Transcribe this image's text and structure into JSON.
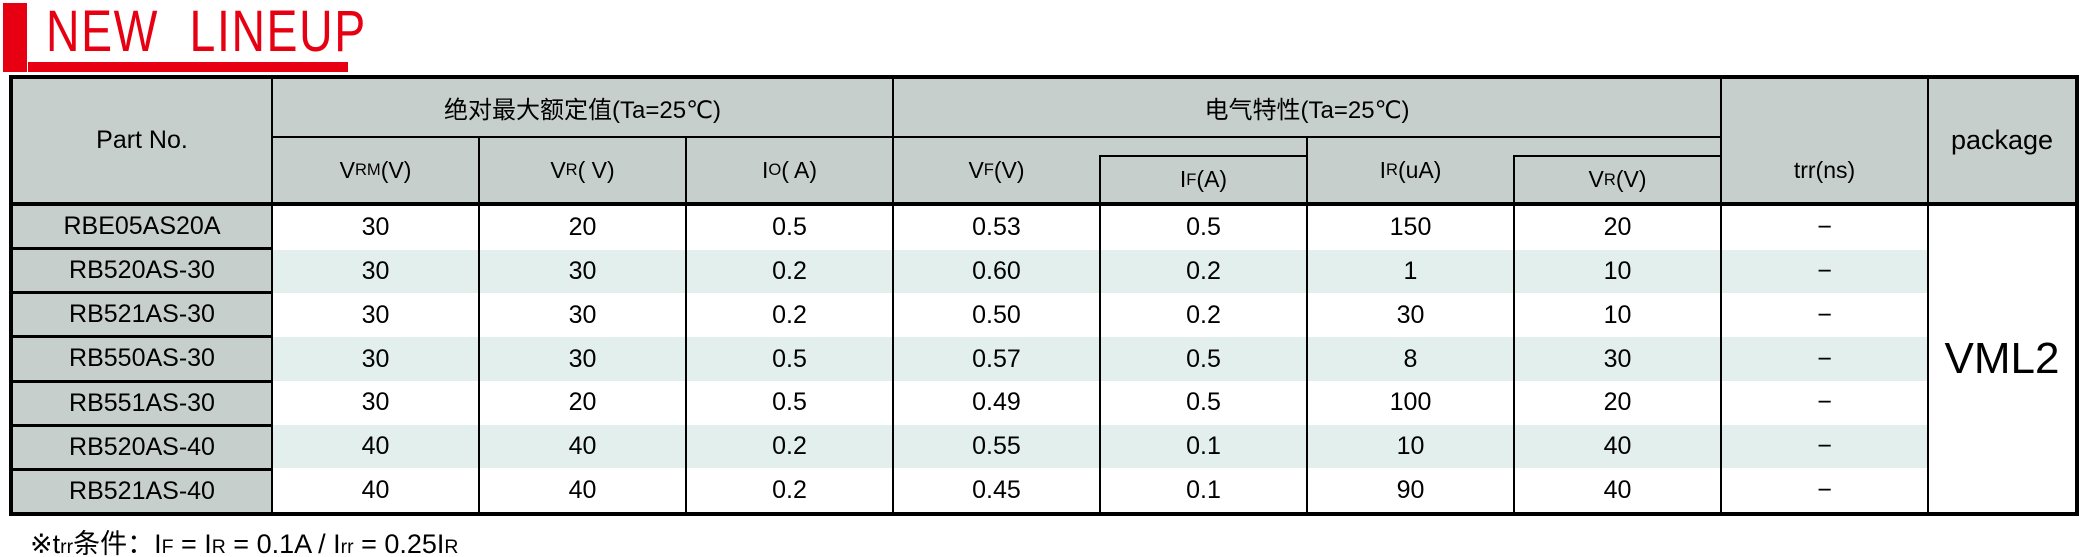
{
  "title": {
    "text": "NEW LINEUP"
  },
  "colors": {
    "accent_red": "#e60012",
    "header_gray": "#c6cfcb",
    "row_stripe": "#e2efed"
  },
  "table": {
    "headers": {
      "part_no": "Part No.",
      "abs_max_group": "绝对最大额定值(Ta=25℃)",
      "elec_group": "电气特性(Ta=25℃)",
      "package": "package",
      "vrm": {
        "base": "V",
        "sub": "RM",
        "unit": " (V)"
      },
      "vr": {
        "base": "V",
        "sub": "R",
        "unit": "( V)"
      },
      "io": {
        "base": "I",
        "sub": "O",
        "unit": "( A)"
      },
      "vf": {
        "base": "V",
        "sub": "F",
        "unit": " (V)"
      },
      "if_a": {
        "base": "I",
        "sub": "F",
        "unit": " (A)"
      },
      "ir": {
        "base": "I",
        "sub": "R",
        "unit": " (uA)"
      },
      "vr2": {
        "base": "V",
        "sub": "R",
        "unit": " (V)"
      },
      "trr": {
        "base": "t",
        "sub": "rr",
        "unit": " (ns)"
      }
    },
    "package_value": "VML2",
    "rows": [
      {
        "part": "RBE05AS20A",
        "vrm": "30",
        "vr": "20",
        "io": "0.5",
        "vf": "0.53",
        "if_a": "0.5",
        "ir": "150",
        "vr2": "20",
        "trr": "−"
      },
      {
        "part": "RB520AS-30",
        "vrm": "30",
        "vr": "30",
        "io": "0.2",
        "vf": "0.60",
        "if_a": "0.2",
        "ir": "1",
        "vr2": "10",
        "trr": "−"
      },
      {
        "part": "RB521AS-30",
        "vrm": "30",
        "vr": "30",
        "io": "0.2",
        "vf": "0.50",
        "if_a": "0.2",
        "ir": "30",
        "vr2": "10",
        "trr": "−"
      },
      {
        "part": "RB550AS-30",
        "vrm": "30",
        "vr": "30",
        "io": "0.5",
        "vf": "0.57",
        "if_a": "0.5",
        "ir": "8",
        "vr2": "30",
        "trr": "−"
      },
      {
        "part": "RB551AS-30",
        "vrm": "30",
        "vr": "20",
        "io": "0.5",
        "vf": "0.49",
        "if_a": "0.5",
        "ir": "100",
        "vr2": "20",
        "trr": "−"
      },
      {
        "part": "RB520AS-40",
        "vrm": "40",
        "vr": "40",
        "io": "0.2",
        "vf": "0.55",
        "if_a": "0.1",
        "ir": "10",
        "vr2": "40",
        "trr": "−"
      },
      {
        "part": "RB521AS-40",
        "vrm": "40",
        "vr": "40",
        "io": "0.2",
        "vf": "0.45",
        "if_a": "0.1",
        "ir": "90",
        "vr2": "40",
        "trr": "−"
      }
    ]
  },
  "footnote": {
    "parts": [
      "※t",
      "rr",
      "条件：I",
      "F",
      " = I",
      "R",
      " = 0.1A / I",
      "rr",
      " = 0.25I",
      "R"
    ]
  }
}
